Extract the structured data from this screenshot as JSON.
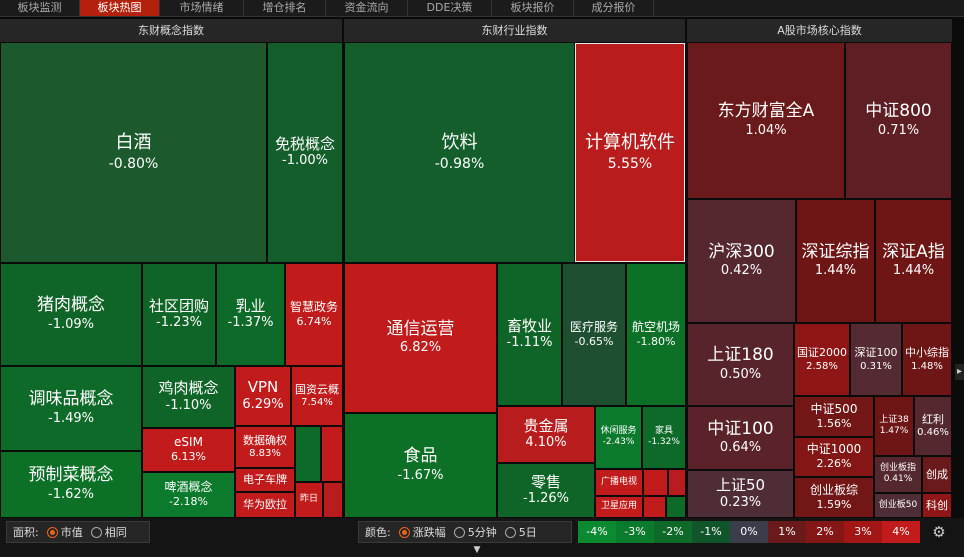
{
  "tabs": [
    {
      "label": "板块监测"
    },
    {
      "label": "板块热图"
    },
    {
      "label": "市场情绪"
    },
    {
      "label": "增仓排名"
    },
    {
      "label": "资金流向"
    },
    {
      "label": "DDE决策"
    },
    {
      "label": "板块报价"
    },
    {
      "label": "成分报价"
    }
  ],
  "sections": {
    "concept": "东财概念指数",
    "industry": "东财行业指数",
    "core": "A股市场核心指数"
  },
  "tiles": [
    {
      "name": "白酒",
      "pct": "-0.80%",
      "color": "#1c5a2e"
    },
    {
      "name": "免税概念",
      "pct": "-1.00%",
      "color": "#145e2c"
    },
    {
      "name": "猪肉概念",
      "pct": "-1.09%",
      "color": "#0f6527"
    },
    {
      "name": "社区团购",
      "pct": "-1.23%",
      "color": "#0f6527"
    },
    {
      "name": "乳业",
      "pct": "-1.37%",
      "color": "#0e6a28"
    },
    {
      "name": "智慧政务",
      "pct": "6.74%",
      "color": "#c21b1b"
    },
    {
      "name": "调味品概念",
      "pct": "-1.49%",
      "color": "#0e6a28"
    },
    {
      "name": "鸡肉概念",
      "pct": "-1.10%",
      "color": "#0f6527"
    },
    {
      "name": "VPN",
      "pct": "6.29%",
      "color": "#c21b1b"
    },
    {
      "name": "国资云概",
      "pct": "7.54%",
      "color": "#c21b1b"
    },
    {
      "name": "eSIM",
      "pct": "6.13%",
      "color": "#c21b1b"
    },
    {
      "name": "数据确权",
      "pct": "8.83%",
      "color": "#c21b1b"
    },
    {
      "name": "预制菜概念",
      "pct": "-1.62%",
      "color": "#0c7027"
    },
    {
      "name": "啤酒概念",
      "pct": "-2.18%",
      "color": "#0b7a2c"
    },
    {
      "name": "电子车牌",
      "pct": "",
      "color": "#c21b1b"
    },
    {
      "name": "华为欧拉",
      "pct": "",
      "color": "#c21b1b"
    },
    {
      "name": "昨日",
      "pct": "",
      "color": "#c21b1b"
    },
    {
      "name": "饮料",
      "pct": "-0.98%",
      "color": "#145e2c"
    },
    {
      "name": "计算机软件",
      "pct": "5.55%",
      "color": "#b91c1c"
    },
    {
      "name": "通信运营",
      "pct": "6.82%",
      "color": "#c21b1b"
    },
    {
      "name": "畜牧业",
      "pct": "-1.11%",
      "color": "#0f6527"
    },
    {
      "name": "医疗服务",
      "pct": "-0.65%",
      "color": "#1d4f30"
    },
    {
      "name": "航空机场",
      "pct": "-1.80%",
      "color": "#0c7027"
    },
    {
      "name": "贵金属",
      "pct": "4.10%",
      "color": "#b91c1c"
    },
    {
      "name": "休闲服务",
      "pct": "-2.43%",
      "color": "#0b7a2c"
    },
    {
      "name": "家具",
      "pct": "-1.32%",
      "color": "#0e6a28"
    },
    {
      "name": "食品",
      "pct": "-1.67%",
      "color": "#0c7027"
    },
    {
      "name": "零售",
      "pct": "-1.26%",
      "color": "#0f6527"
    },
    {
      "name": "广播电视",
      "pct": "",
      "color": "#c21b1b"
    },
    {
      "name": "卫星应用",
      "pct": "",
      "color": "#c21b1b"
    },
    {
      "name": "东方财富全A",
      "pct": "1.04%",
      "color": "#6a1a1a"
    },
    {
      "name": "中证800",
      "pct": "0.71%",
      "color": "#5e1f24"
    },
    {
      "name": "沪深300",
      "pct": "0.42%",
      "color": "#55272f"
    },
    {
      "name": "深证综指",
      "pct": "1.44%",
      "color": "#6e1616"
    },
    {
      "name": "深证A指",
      "pct": "1.44%",
      "color": "#6e1616"
    },
    {
      "name": "上证180",
      "pct": "0.50%",
      "color": "#58242b"
    },
    {
      "name": "国证2000",
      "pct": "2.58%",
      "color": "#8e1616"
    },
    {
      "name": "深证100",
      "pct": "0.31%",
      "color": "#542a33"
    },
    {
      "name": "中小综指",
      "pct": "1.48%",
      "color": "#6e1616"
    },
    {
      "name": "中证500",
      "pct": "1.56%",
      "color": "#721616"
    },
    {
      "name": "上证38",
      "pct": "1.47%",
      "color": "#6e1616"
    },
    {
      "name": "红利",
      "pct": "0.46%",
      "color": "#55272f"
    },
    {
      "name": "中证100",
      "pct": "0.64%",
      "color": "#5a2229"
    },
    {
      "name": "中证1000",
      "pct": "2.26%",
      "color": "#851616"
    },
    {
      "name": "创业板指",
      "pct": "0.41%",
      "color": "#55272f"
    },
    {
      "name": "创成",
      "pct": "",
      "color": "#6a1a1a"
    },
    {
      "name": "上证50",
      "pct": "0.23%",
      "color": "#4e2d36"
    },
    {
      "name": "创业板综",
      "pct": "1.59%",
      "color": "#721616"
    },
    {
      "name": "创业板50",
      "pct": "",
      "color": "#4e2d36"
    },
    {
      "name": "科创",
      "pct": "",
      "color": "#8e1616"
    }
  ],
  "controls": {
    "area_label": "面积:",
    "area_options": [
      "市值",
      "相同"
    ],
    "color_label": "颜色:",
    "color_options": [
      "涨跌幅",
      "5分钟",
      "5日"
    ]
  },
  "legend": [
    {
      "label": "-4%",
      "color": "#0b8a32"
    },
    {
      "label": "-3%",
      "color": "#0a7a2c"
    },
    {
      "label": "-2%",
      "color": "#0d6a28"
    },
    {
      "label": "-1%",
      "color": "#11552a"
    },
    {
      "label": "0%",
      "color": "#3b3e4a"
    },
    {
      "label": "1%",
      "color": "#6a1a1a"
    },
    {
      "label": "2%",
      "color": "#851616"
    },
    {
      "label": "3%",
      "color": "#a21616"
    },
    {
      "label": "4%",
      "color": "#c21b1b"
    }
  ]
}
